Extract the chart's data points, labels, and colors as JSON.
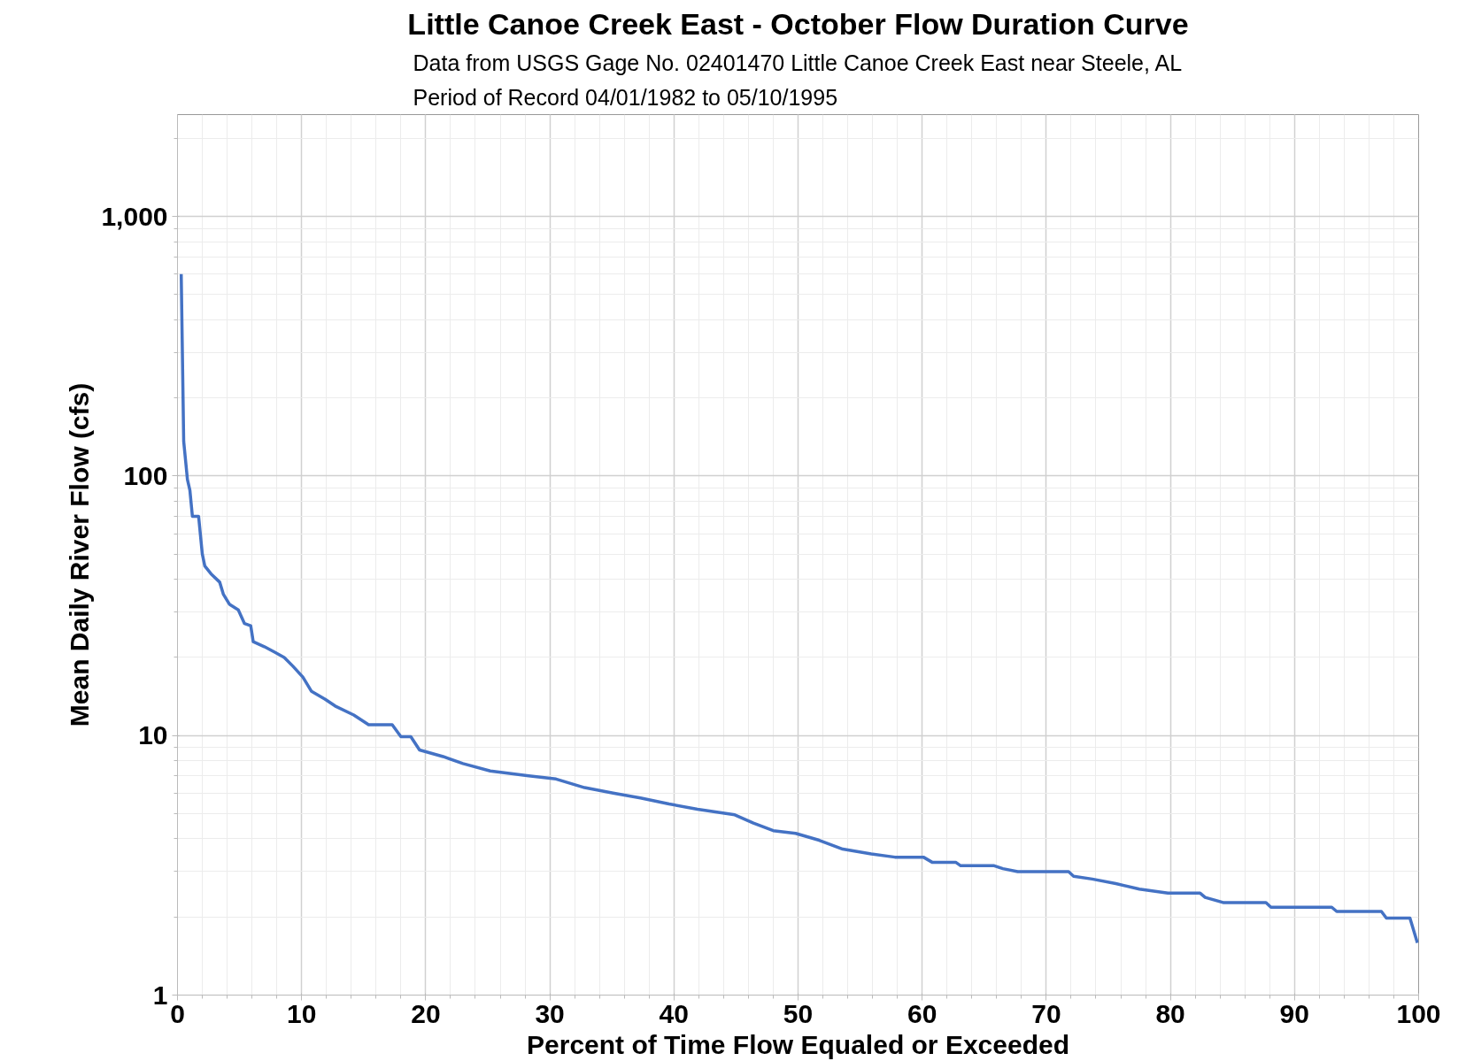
{
  "chart_data": {
    "type": "line",
    "title": "Little Canoe Creek East - October Flow Duration Curve",
    "subtitle": "Data from USGS Gage No. 02401470 Little Canoe Creek East near Steele, AL\nPeriod of Record 04/01/1982 to 05/10/1995",
    "xlabel": "Percent of Time Flow Equaled or Exceeded",
    "ylabel": "Mean Daily River Flow (cfs)",
    "x": [
      0.3,
      0.5,
      0.8,
      1.0,
      1.2,
      1.7,
      2.0,
      2.2,
      2.7,
      3.4,
      3.7,
      4.2,
      4.9,
      5.4,
      5.9,
      6.1,
      7.0,
      7.8,
      8.6,
      9.3,
      10.1,
      10.8,
      11.9,
      12.7,
      14.2,
      15.4,
      17.3,
      18.0,
      18.8,
      19.5,
      21.4,
      23,
      25.2,
      28.3,
      30.5,
      32.8,
      35.1,
      37.3,
      39.6,
      41.9,
      44.9,
      46.4,
      48,
      49.8,
      51.7,
      53.6,
      55.9,
      57.8,
      60.1,
      60.8,
      62.7,
      63.1,
      65.8,
      66.5,
      67.7,
      71.8,
      72.2,
      73.7,
      75.6,
      77.5,
      79.8,
      82.4,
      82.8,
      84.3,
      87.7,
      88.1,
      93,
      93.4,
      97,
      97.4,
      99.3,
      99.9
    ],
    "series": [
      {
        "color": "#4472c4",
        "values": [
          600,
          136,
          97,
          88,
          70,
          70,
          50,
          45,
          42,
          39,
          35,
          32,
          30.5,
          27,
          26.5,
          23,
          22,
          21,
          20,
          18.5,
          16.8,
          14.8,
          13.8,
          13,
          12,
          11,
          11,
          9.9,
          9.9,
          8.8,
          8.3,
          7.8,
          7.3,
          7,
          6.8,
          6.3,
          6.0,
          5.75,
          5.45,
          5.2,
          4.95,
          4.6,
          4.3,
          4.2,
          3.95,
          3.65,
          3.5,
          3.4,
          3.4,
          3.25,
          3.25,
          3.15,
          3.15,
          3.07,
          2.99,
          2.99,
          2.87,
          2.8,
          2.69,
          2.56,
          2.47,
          2.47,
          2.38,
          2.27,
          2.27,
          2.18,
          2.18,
          2.1,
          2.1,
          1.98,
          1.98,
          1.59
        ]
      }
    ],
    "log": "y",
    "xlim": [
      0,
      100
    ],
    "xticks": [
      0,
      10,
      20,
      30,
      40,
      50,
      60,
      70,
      80,
      90,
      100
    ],
    "ylim": [
      1,
      2470
    ],
    "yticks": [
      1,
      10,
      100,
      {
        "value": 1000,
        "label": "1,000"
      }
    ],
    "grid": true,
    "marker": "none",
    "line_style": "solid"
  }
}
